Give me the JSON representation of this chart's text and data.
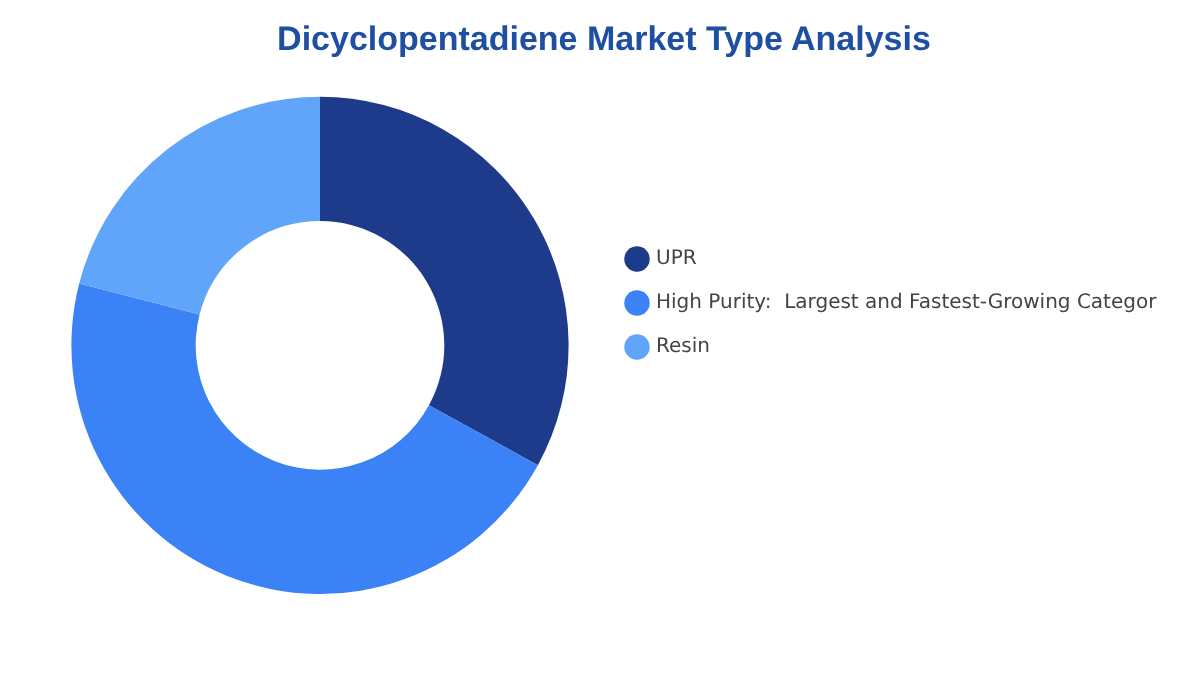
{
  "chart_data": {
    "type": "donut",
    "title": "Dicyclopentadiene Market Type Analysis",
    "categories": [
      "UPR",
      "High Purity:  Largest and Fastest-Growing Categor",
      "Resin"
    ],
    "values": [
      33,
      46,
      21
    ],
    "colors": [
      "#1e3a8a",
      "#3b82f6",
      "#60a5fa"
    ],
    "legend": "right"
  }
}
